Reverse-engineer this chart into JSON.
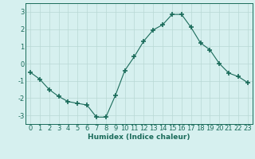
{
  "x": [
    0,
    1,
    2,
    3,
    4,
    5,
    6,
    7,
    8,
    9,
    10,
    11,
    12,
    13,
    14,
    15,
    16,
    17,
    18,
    19,
    20,
    21,
    22,
    23
  ],
  "y": [
    -0.5,
    -0.9,
    -1.5,
    -1.9,
    -2.2,
    -2.3,
    -2.4,
    -3.1,
    -3.1,
    -1.85,
    -0.4,
    0.4,
    1.3,
    1.95,
    2.25,
    2.85,
    2.85,
    2.1,
    1.2,
    0.8,
    0.0,
    -0.55,
    -0.75,
    -1.1
  ],
  "line_color": "#1a6b5a",
  "marker": "+",
  "marker_size": 4,
  "marker_lw": 1.2,
  "bg_color": "#d6f0ef",
  "grid_color": "#b8d8d4",
  "xlabel": "Humidex (Indice chaleur)",
  "ylim": [
    -3.5,
    3.5
  ],
  "xlim": [
    -0.5,
    23.5
  ],
  "yticks": [
    -3,
    -2,
    -1,
    0,
    1,
    2,
    3
  ],
  "xticks": [
    0,
    1,
    2,
    3,
    4,
    5,
    6,
    7,
    8,
    9,
    10,
    11,
    12,
    13,
    14,
    15,
    16,
    17,
    18,
    19,
    20,
    21,
    22,
    23
  ],
  "label_fontsize": 6.5,
  "tick_fontsize": 6.0
}
